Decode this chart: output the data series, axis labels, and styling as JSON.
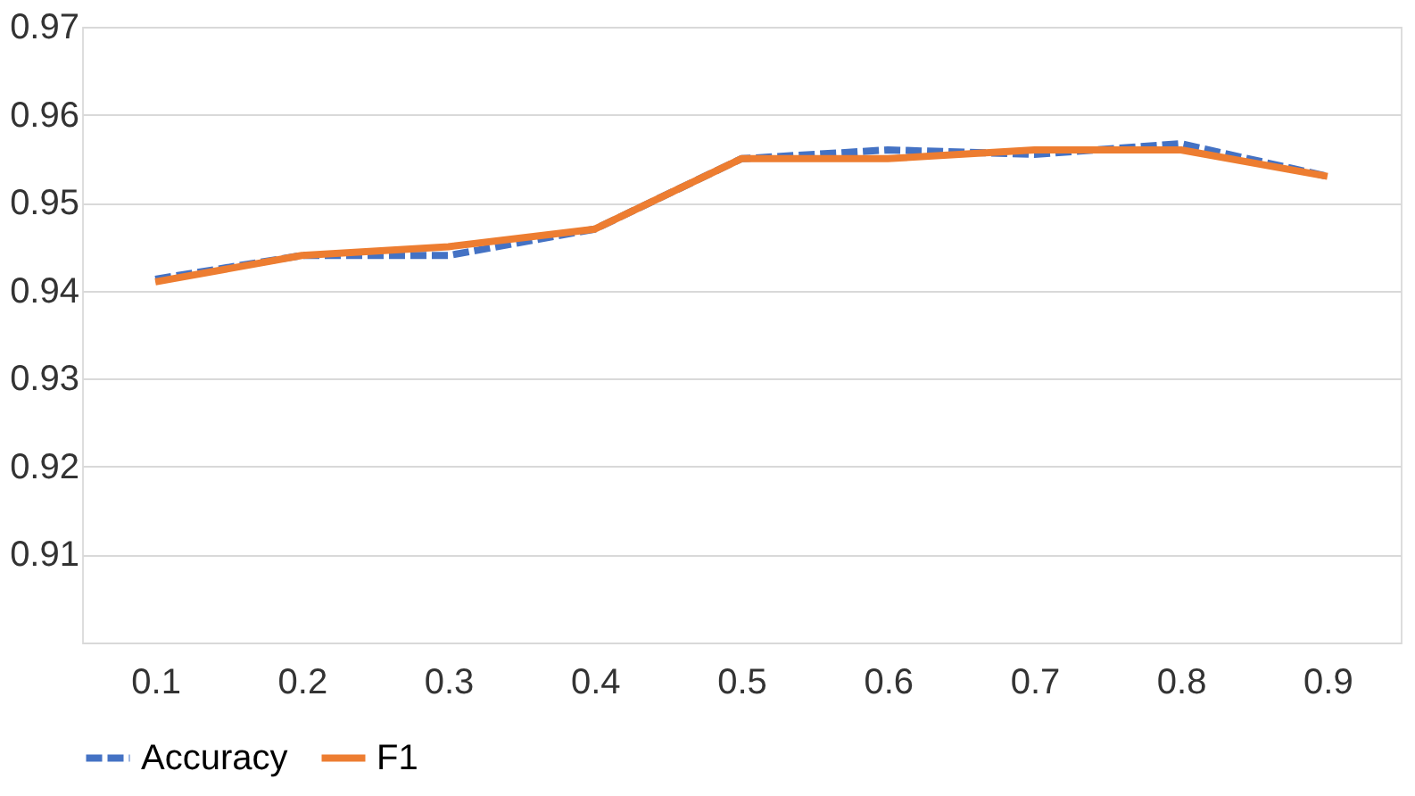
{
  "chart_data": {
    "type": "line",
    "categories": [
      "0.1",
      "0.2",
      "0.3",
      "0.4",
      "0.5",
      "0.6",
      "0.7",
      "0.8",
      "0.9"
    ],
    "series": [
      {
        "name": "Accuracy",
        "color": "#4472c4",
        "line_style": "dashed",
        "values": [
          0.9413,
          0.944,
          0.944,
          0.947,
          0.955,
          0.956,
          0.9555,
          0.9567,
          0.953
        ]
      },
      {
        "name": "F1",
        "color": "#ed7d31",
        "line_style": "solid",
        "values": [
          0.941,
          0.944,
          0.945,
          0.947,
          0.955,
          0.955,
          0.956,
          0.956,
          0.953
        ]
      }
    ],
    "ylim": [
      0.9,
      0.97
    ],
    "yticks": [
      {
        "value": 0.9,
        "label": null
      },
      0.91,
      0.92,
      0.93,
      0.94,
      0.95,
      0.96,
      0.97
    ],
    "grid": "y",
    "legend": "bottom",
    "marker": "none"
  }
}
